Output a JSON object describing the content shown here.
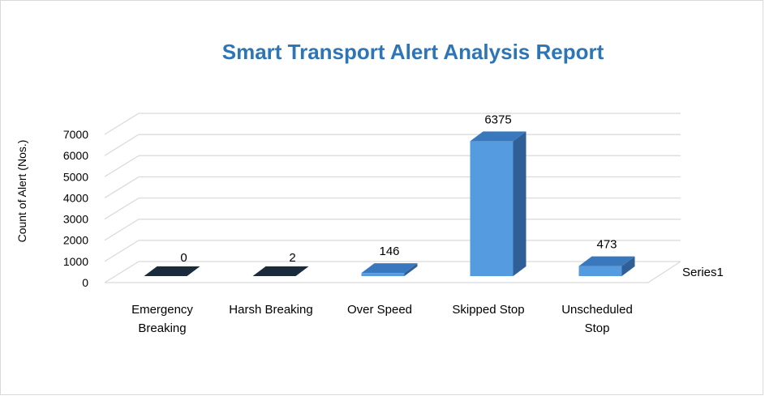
{
  "chart_data": {
    "type": "bar",
    "title": "Smart Transport  Alert Analysis Report",
    "xlabel": "",
    "ylabel": "Count of Alert (Nos.)",
    "categories": [
      [
        "Emergency",
        "Breaking"
      ],
      [
        "Harsh Breaking"
      ],
      [
        "Over Speed"
      ],
      [
        "Skipped Stop"
      ],
      [
        "Unscheduled",
        "Stop"
      ]
    ],
    "series": [
      {
        "name": "Series1",
        "values": [
          0,
          2,
          146,
          6375,
          473
        ]
      }
    ],
    "data_labels": [
      "0",
      "2",
      "146",
      "6375",
      "473"
    ],
    "ylim": [
      0,
      7000
    ],
    "yticks": [
      "0",
      "1000",
      "2000",
      "3000",
      "4000",
      "5000",
      "6000",
      "7000"
    ],
    "grid": true,
    "three_d": true,
    "legend": "right",
    "colors": {
      "bar_front": "#559bdf",
      "bar_side": "#2f5f96",
      "bar_top": "#3a78bd",
      "zero_bar": "#1a2b3c",
      "title": "#2e75b6",
      "grid": "#d9d9d9"
    }
  }
}
